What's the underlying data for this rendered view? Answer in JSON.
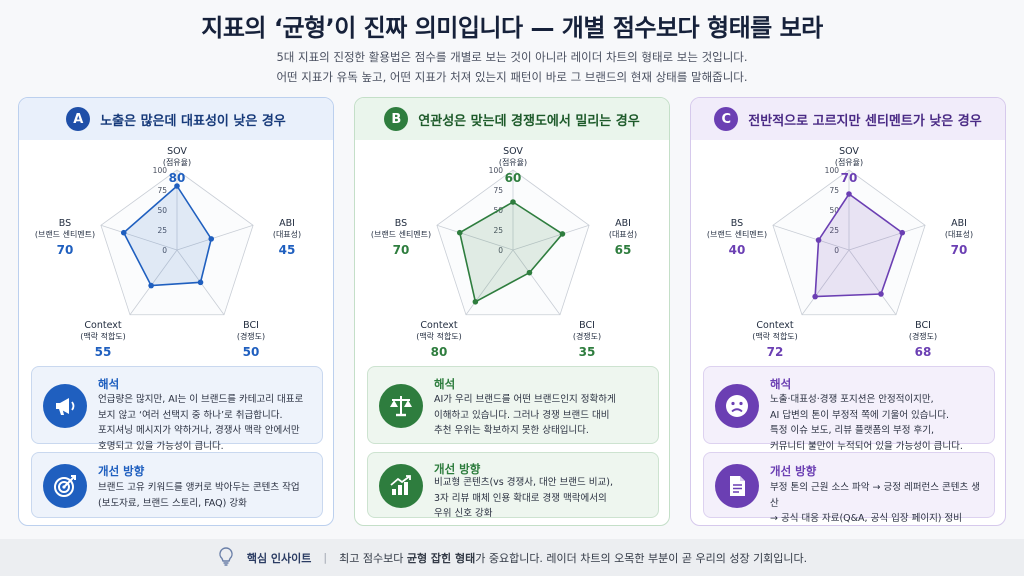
{
  "title": "지표의 ‘균형’이 진짜 의미입니다 — 개별 점수보다 형태를 보라",
  "subtitle_line1": "5대 지표의 진정한 활용법은 점수를 개별로 보는 것이 아니라 레이더 차트의 형태로 보는 것입니다.",
  "subtitle_line2": "어떤 지표가 유독 높고, 어떤 지표가 처져 있는지 패턴이 바로 그 브랜드의 현재 상태를 말해줍니다.",
  "ticks": [
    "100",
    "75",
    "50",
    "25",
    "0"
  ],
  "axes": [
    {
      "name": "SOV",
      "sub": "(점유율)"
    },
    {
      "name": "ABI",
      "sub": "(대표성)"
    },
    {
      "name": "BCI",
      "sub": "(경쟁도)"
    },
    {
      "name": "Context",
      "sub": "(맥락 적합도)"
    },
    {
      "name": "BS",
      "sub": "(브랜드 센티멘트)"
    }
  ],
  "cards": [
    {
      "badge": "A",
      "heading": "노출은 많은데 대표성이 낮은 경우",
      "color": "#1f5fbf",
      "info_title": "해석",
      "info_lines": [
        "언급량은 많지만, AI는 이 브랜드를 카테고리 대표로",
        "보지 않고 ‘여러 선택지 중 하나’로 취급합니다.",
        "포지셔닝 메시지가 약하거나, 경쟁사 맥락 안에서만",
        "호명되고 있을 가능성이 큽니다."
      ],
      "improve_title": "개선 방향",
      "improve_lines": [
        "브랜드 고유 키워드를 앵커로 박아두는 콘텐츠 작업",
        "(보도자료, 브랜드 스토리, FAQ) 강화"
      ],
      "values": [
        "80",
        "45",
        "50",
        "55",
        "70"
      ]
    },
    {
      "badge": "B",
      "heading": "연관성은 맞는데 경쟁도에서 밀리는 경우",
      "color": "#2e7d3e",
      "info_title": "해석",
      "info_lines": [
        "AI가 우리 브랜드를 어떤 브랜드인지 정확하게",
        "이해하고 있습니다. 그러나 경쟁 브랜드 대비",
        "추천 우위는 확보하지 못한 상태입니다."
      ],
      "improve_title": "개선 방향",
      "improve_lines": [
        "비교형 콘텐츠(vs 경쟁사, 대안 브랜드 비교),",
        "3자 리뷰 매체 인용 확대로 경쟁 맥락에서의",
        "우위 신호 강화"
      ],
      "values": [
        "60",
        "65",
        "35",
        "80",
        "70"
      ]
    },
    {
      "badge": "C",
      "heading": "전반적으로 고르지만 센티멘트가 낮은 경우",
      "color": "#6b3fb3",
      "info_title": "해석",
      "info_lines": [
        "노출·대표성·경쟁 포지션은 안정적이지만,",
        "AI 답변의 톤이 부정적 쪽에 기울어 있습니다.",
        "특정 이슈 보도, 리뷰 플랫폼의 부정 후기,",
        "커뮤니티 불만이 누적되어 있을 가능성이 큽니다."
      ],
      "improve_title": "개선 방향",
      "improve_lines": [
        "부정 톤의 근원 소스 파악 → 긍정 레퍼런스 콘텐츠 생산",
        "→ 공식 대응 자료(Q&A, 공식 입장 페이지) 정비"
      ],
      "values": [
        "70",
        "70",
        "68",
        "72",
        "40"
      ]
    }
  ],
  "footer": {
    "label": "핵심 인사이트",
    "text_before": "최고 점수보다 ",
    "text_bold": "균형 잡힌 형태",
    "text_after": "가 중요합니다. 레이더 차트의 오목한 부분이 곧 우리의 성장 기회입니다."
  },
  "chart_data": [
    {
      "type": "radar",
      "axes": [
        "SOV",
        "ABI",
        "BCI",
        "Context",
        "BS"
      ],
      "range": [
        0,
        100
      ],
      "values": [
        80,
        45,
        50,
        55,
        70
      ],
      "color": "#1f5fbf"
    },
    {
      "type": "radar",
      "axes": [
        "SOV",
        "ABI",
        "BCI",
        "Context",
        "BS"
      ],
      "range": [
        0,
        100
      ],
      "values": [
        60,
        65,
        35,
        80,
        70
      ],
      "color": "#2e7d3e"
    },
    {
      "type": "radar",
      "axes": [
        "SOV",
        "ABI",
        "BCI",
        "Context",
        "BS"
      ],
      "range": [
        0,
        100
      ],
      "values": [
        70,
        70,
        68,
        72,
        40
      ],
      "color": "#6b3fb3"
    }
  ]
}
